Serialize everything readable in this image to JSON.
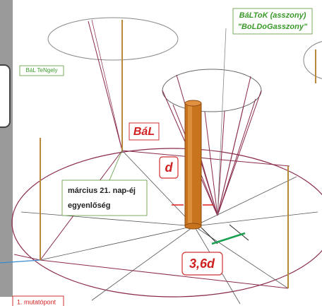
{
  "labels": {
    "baltok": "BáLToK (asszony)",
    "boldogasszony": "\"BoLDoGasszony\"",
    "bal_tengely": "BáL TeNgely",
    "bal": "BáL",
    "d": "d",
    "equinox_line1": "március 21. nap-éj",
    "equinox_line2": "egyenlőség",
    "ratio": "3,6d",
    "pointer": "1. mutatópont"
  }
}
